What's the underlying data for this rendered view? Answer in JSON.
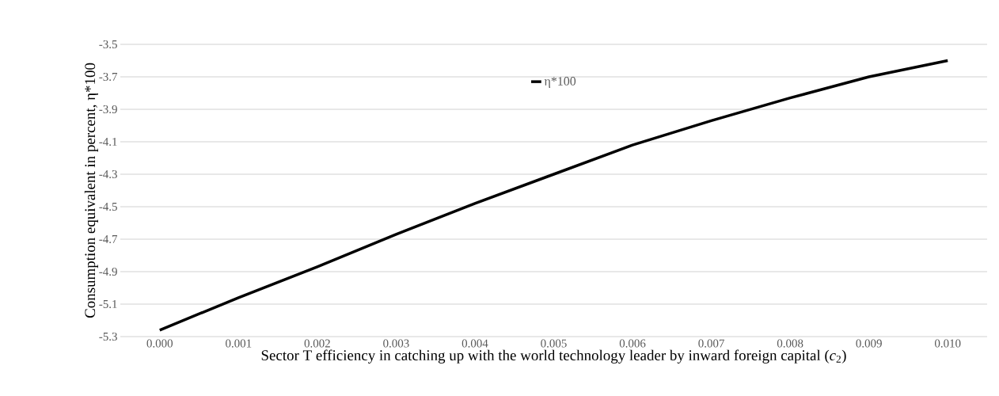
{
  "chart_data": {
    "type": "line",
    "xlabel": "Sector T efficiency in catching up with the world technology leader by inward foreign capital (*c*$_{2}$)",
    "ylabel": "Consumption equivalent in percent, η*100",
    "categories": [
      "0.000",
      "0.001",
      "0.002",
      "0.003",
      "0.004",
      "0.005",
      "0.006",
      "0.007",
      "0.008",
      "0.009",
      "0.010"
    ],
    "series": [
      {
        "name": "η*100",
        "color": "#000000",
        "values": [
          -5.26,
          -5.06,
          -4.87,
          -4.67,
          -4.48,
          -4.3,
          -4.12,
          -3.97,
          -3.83,
          -3.7,
          -3.6
        ]
      }
    ],
    "ylim": [
      -5.3,
      -3.5
    ],
    "yticks": [
      -5.3,
      -5.1,
      -4.9,
      -4.7,
      -4.5,
      -4.3,
      -4.1,
      -3.9,
      -3.7,
      -3.5
    ],
    "grid": "y",
    "legend": "top",
    "marker": "none",
    "line_style": "solid"
  }
}
